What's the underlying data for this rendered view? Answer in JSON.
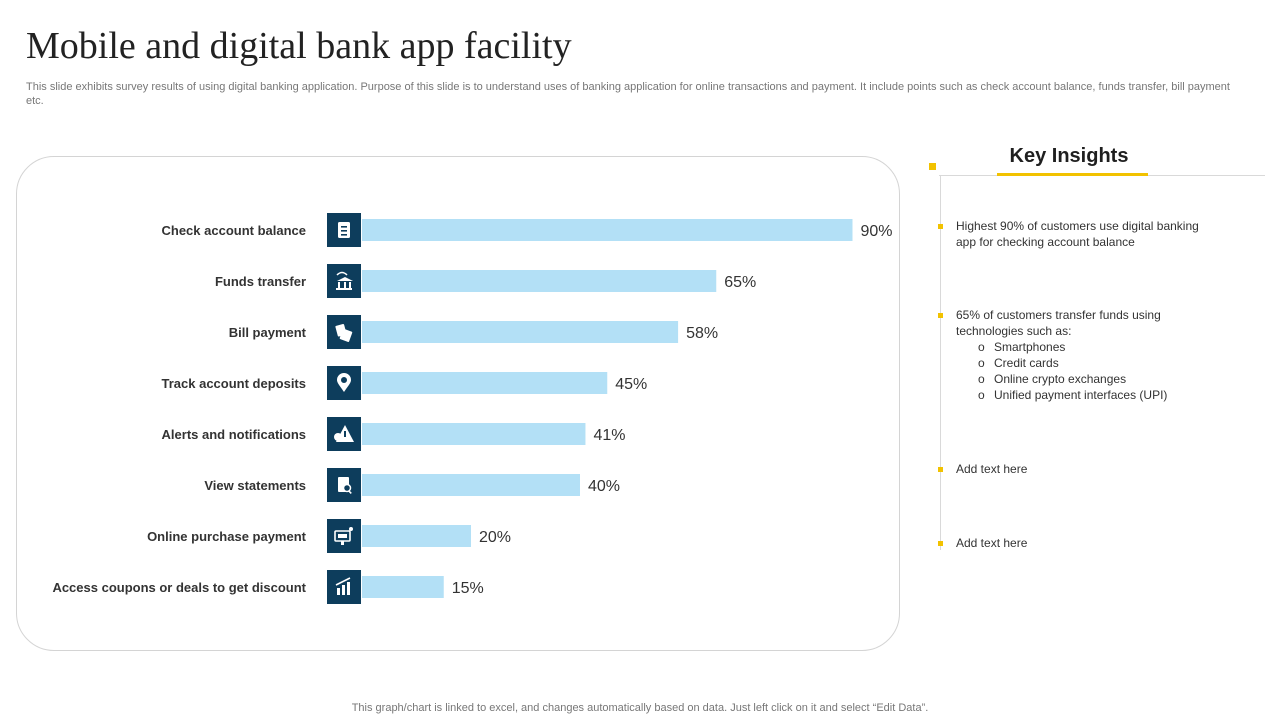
{
  "page": {
    "title": "Mobile and digital bank app facility",
    "subtitle": "This slide exhibits survey results of using digital banking application. Purpose of this slide is to understand uses of banking application for online transactions and payment. It include points such as check account balance, funds transfer, bill payment etc.",
    "footer": "This graph/chart is linked to excel,  and changes automatically based on data. Just left click on it and select “Edit Data”."
  },
  "chart_data": {
    "type": "bar",
    "orientation": "horizontal",
    "categories": [
      "Check account balance",
      "Funds transfer",
      "Bill payment",
      "Track account deposits",
      "Alerts and notifications",
      "View statements",
      "Online purchase payment",
      "Access  coupons  or deals to get discount"
    ],
    "values": [
      90,
      65,
      58,
      45,
      41,
      40,
      20,
      15
    ],
    "value_labels": [
      "90%",
      "65%",
      "58%",
      "45%",
      "41%",
      "40%",
      "20%",
      "15%"
    ],
    "icons": [
      "clipboard-icon",
      "bank-transfer-icon",
      "bills-icon",
      "location-pin-icon",
      "alert-warning-icon",
      "statement-search-icon",
      "online-shop-icon",
      "growth-chart-icon"
    ],
    "unit": "%",
    "xlim": [
      0,
      100
    ],
    "grid": false,
    "legend": "none",
    "bar_color": "#b3e0f6",
    "icon_bg_color": "#0d3d5c"
  },
  "insights": {
    "title": "Key Insights",
    "accent_color": "#f2c200",
    "items": [
      {
        "text": "Highest 90% of customers use digital banking app for checking account balance"
      },
      {
        "text": "65% of customers transfer funds using technologies such as:",
        "subitems": [
          "Smartphones",
          "Credit cards",
          "Online crypto exchanges",
          "Unified  payment interfaces (UPI)"
        ]
      },
      {
        "text": "Add text here"
      },
      {
        "text": "Add text here"
      }
    ]
  }
}
